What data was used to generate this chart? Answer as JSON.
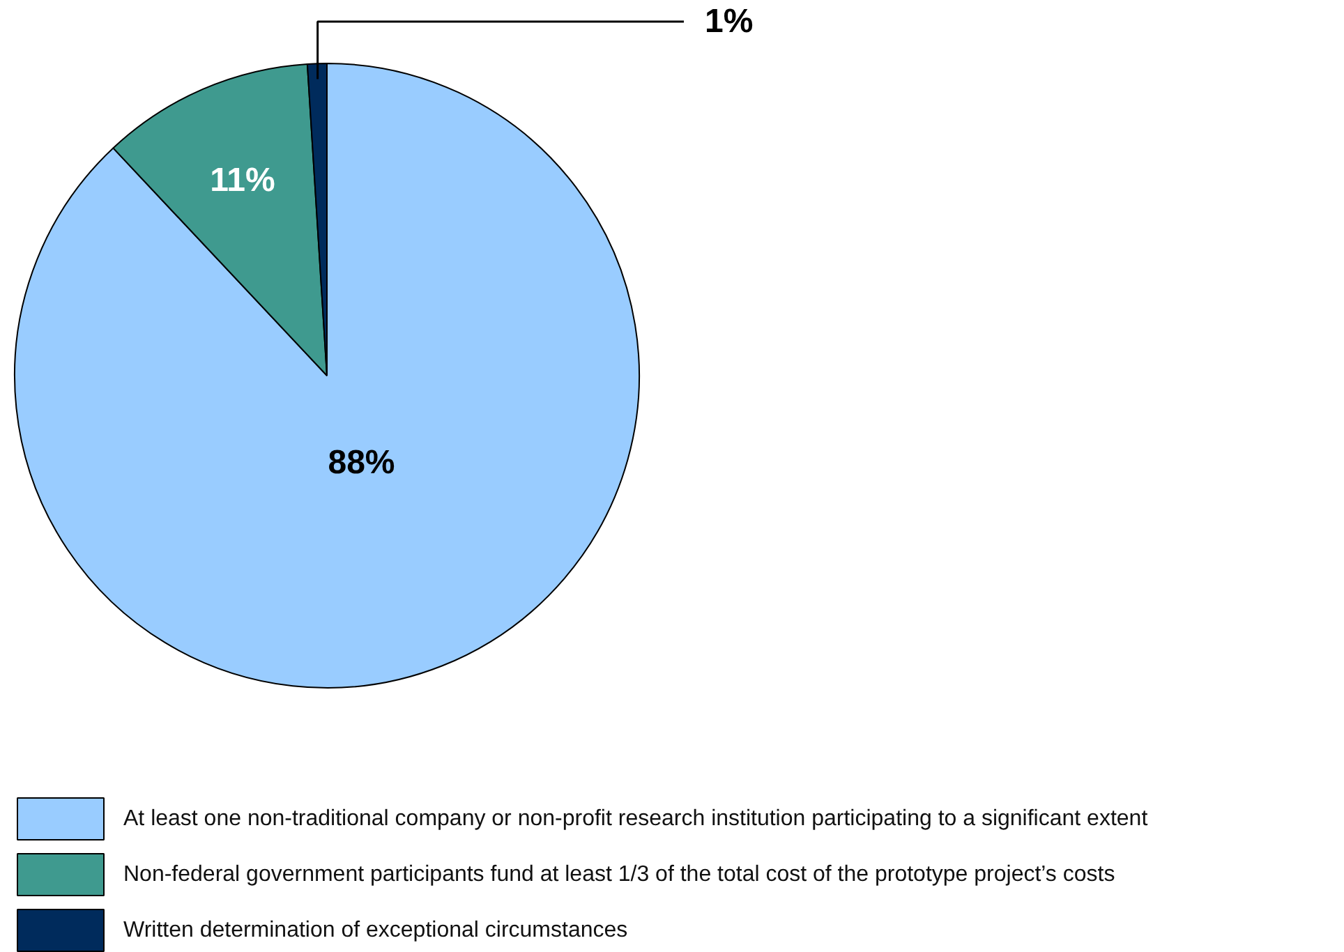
{
  "chart_data": {
    "type": "pie",
    "categories": [
      "At least one non-traditional company or non-profit research institution participating to a significant extent",
      "Non-federal government participants fund at least 1/3 of the total cost of the prototype project’s costs",
      "Written determination of exceptional circumstances"
    ],
    "values": [
      88,
      11,
      1
    ],
    "colors": [
      "#99ccff",
      "#3f9a8f",
      "#002b5c"
    ],
    "value_labels": [
      "88%",
      "11%",
      "1%"
    ],
    "legend": "bottom"
  }
}
